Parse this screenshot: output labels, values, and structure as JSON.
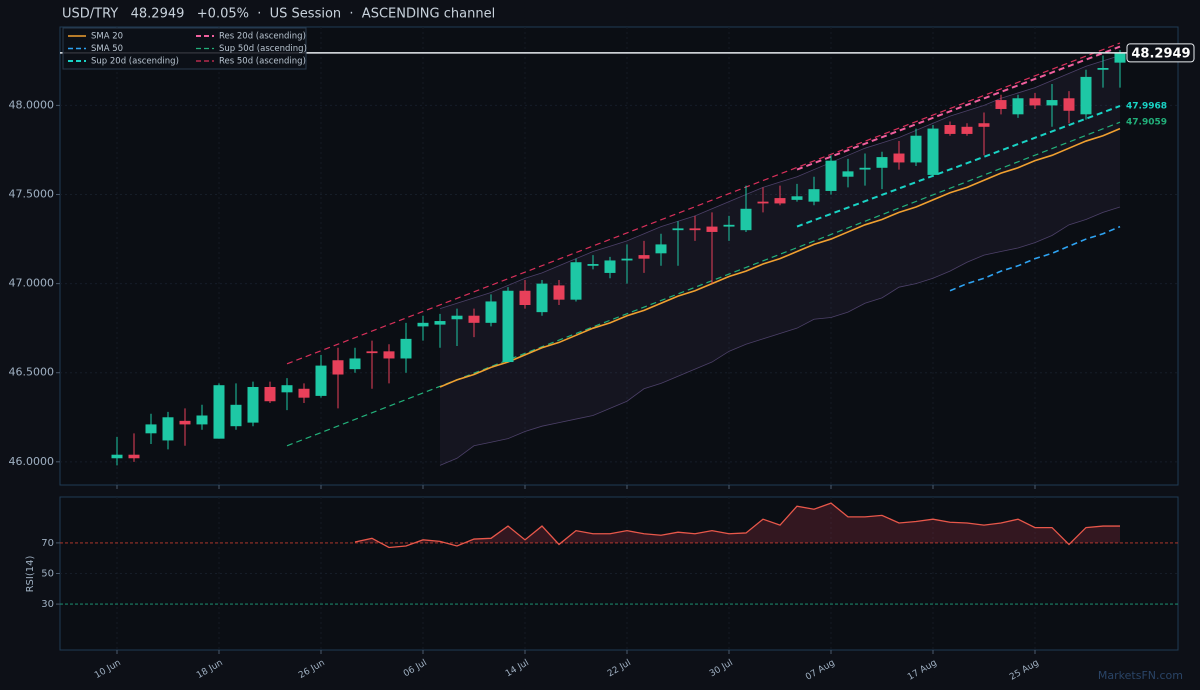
{
  "chart_data": [
    {
      "type": "candlestick",
      "title": "USD/TRY   48.2949   +0.05%  ·  US Session  ·  ASCENDING channel",
      "categories": [
        "10 Jun",
        null,
        null,
        null,
        null,
        null,
        "18 Jun",
        null,
        null,
        null,
        null,
        null,
        "26 Jun",
        null,
        null,
        null,
        null,
        null,
        "06 Jul",
        null,
        null,
        null,
        null,
        null,
        "14 Jul",
        null,
        null,
        null,
        null,
        null,
        "22 Jul",
        null,
        null,
        null,
        null,
        null,
        "30 Jul",
        null,
        null,
        null,
        null,
        null,
        "07 Aug",
        null,
        null,
        null,
        null,
        null,
        "17 Aug",
        null,
        null,
        null,
        null,
        null,
        "25 Aug",
        null,
        null,
        null,
        null,
        null
      ],
      "open": [
        46.02,
        46.04,
        46.16,
        46.12,
        46.23,
        46.21,
        46.13,
        46.2,
        46.22,
        46.42,
        46.39,
        46.41,
        46.37,
        46.57,
        46.52,
        46.62,
        46.62,
        46.58,
        46.76,
        46.77,
        46.8,
        46.82,
        46.78,
        46.56,
        46.96,
        46.84,
        46.99,
        46.91,
        47.1,
        47.06,
        47.13,
        47.16,
        47.17,
        47.3,
        47.31,
        47.32,
        47.32,
        47.3,
        47.46,
        47.48,
        47.47,
        47.46,
        47.52,
        47.6,
        47.64,
        47.65,
        47.73,
        47.68,
        47.61,
        47.89,
        47.88,
        47.9,
        48.03,
        47.95,
        48.04,
        48.0,
        48.04,
        47.95,
        48.2,
        48.24
      ],
      "high": [
        46.14,
        46.16,
        46.27,
        46.28,
        46.3,
        46.32,
        46.44,
        46.44,
        46.45,
        46.45,
        46.47,
        46.44,
        46.6,
        46.64,
        46.64,
        46.68,
        46.66,
        46.78,
        46.82,
        46.83,
        46.86,
        46.86,
        46.94,
        46.98,
        47.02,
        47.02,
        47.02,
        47.14,
        47.16,
        47.15,
        47.22,
        47.24,
        47.28,
        47.35,
        47.38,
        47.4,
        47.38,
        47.55,
        47.54,
        47.55,
        47.56,
        47.6,
        47.72,
        47.7,
        47.73,
        47.74,
        47.8,
        47.87,
        47.89,
        47.91,
        47.9,
        47.96,
        48.06,
        48.06,
        48.07,
        48.12,
        48.08,
        48.2,
        48.28,
        48.31
      ],
      "low": [
        45.98,
        46.0,
        46.1,
        46.07,
        46.09,
        46.18,
        46.13,
        46.18,
        46.2,
        46.33,
        46.29,
        46.33,
        46.36,
        46.3,
        46.5,
        46.41,
        46.44,
        46.5,
        46.68,
        46.64,
        46.65,
        46.7,
        46.76,
        46.56,
        46.86,
        46.82,
        46.88,
        46.9,
        47.08,
        47.03,
        47.0,
        47.06,
        47.1,
        47.1,
        47.24,
        47.0,
        47.24,
        47.29,
        47.4,
        47.44,
        47.46,
        47.44,
        47.5,
        47.54,
        47.55,
        47.53,
        47.64,
        47.66,
        47.6,
        47.83,
        47.83,
        47.72,
        47.95,
        47.93,
        47.98,
        47.88,
        47.9,
        47.92,
        48.1,
        48.1
      ],
      "close": [
        46.04,
        46.02,
        46.21,
        46.25,
        46.21,
        46.26,
        46.43,
        46.32,
        46.42,
        46.34,
        46.43,
        46.36,
        46.54,
        46.49,
        46.58,
        46.61,
        46.58,
        46.69,
        46.78,
        46.79,
        46.82,
        46.78,
        46.9,
        46.96,
        46.88,
        47.0,
        46.91,
        47.12,
        47.11,
        47.13,
        47.14,
        47.14,
        47.22,
        47.31,
        47.3,
        47.29,
        47.33,
        47.42,
        47.45,
        47.45,
        47.49,
        47.53,
        47.69,
        47.63,
        47.65,
        47.71,
        47.68,
        47.83,
        47.87,
        47.84,
        47.84,
        47.88,
        47.98,
        48.04,
        48.0,
        48.03,
        47.97,
        48.16,
        48.21,
        48.2949
      ],
      "up_color": "#1ec8a5",
      "down_color": "#e8405a",
      "band": {
        "color": "#8a6fb8",
        "upper": [
          null,
          null,
          null,
          null,
          null,
          null,
          null,
          null,
          null,
          null,
          null,
          null,
          null,
          null,
          null,
          null,
          null,
          null,
          null,
          46.86,
          46.89,
          46.92,
          46.95,
          46.99,
          47.03,
          47.06,
          47.1,
          47.14,
          47.18,
          47.21,
          47.24,
          47.28,
          47.32,
          47.35,
          47.38,
          47.42,
          47.46,
          47.5,
          47.54,
          47.57,
          47.6,
          47.64,
          47.68,
          47.72,
          47.76,
          47.79,
          47.82,
          47.86,
          47.9,
          47.94,
          47.97,
          48.0,
          48.04,
          48.07,
          48.1,
          48.14,
          48.18,
          48.22,
          48.25,
          48.28
        ],
        "lower": [
          null,
          null,
          null,
          null,
          null,
          null,
          null,
          null,
          null,
          null,
          null,
          null,
          null,
          null,
          null,
          null,
          null,
          null,
          null,
          45.98,
          46.02,
          46.09,
          46.11,
          46.13,
          46.17,
          46.2,
          46.22,
          46.24,
          46.26,
          46.3,
          46.34,
          46.41,
          46.44,
          46.48,
          46.52,
          46.56,
          46.62,
          46.66,
          46.69,
          46.72,
          46.75,
          46.8,
          46.81,
          46.84,
          46.89,
          46.92,
          46.98,
          47.0,
          47.03,
          47.07,
          47.12,
          47.16,
          47.18,
          47.2,
          47.23,
          47.27,
          47.33,
          47.36,
          47.4,
          47.43
        ]
      },
      "series": [
        {
          "name": "SMA 20",
          "color": "#f0a030",
          "dashed": false,
          "width": 1.6,
          "values": [
            null,
            null,
            null,
            null,
            null,
            null,
            null,
            null,
            null,
            null,
            null,
            null,
            null,
            null,
            null,
            null,
            null,
            null,
            null,
            46.42,
            46.46,
            46.49,
            46.53,
            46.56,
            46.6,
            46.64,
            46.67,
            46.71,
            46.75,
            46.78,
            46.82,
            46.85,
            46.89,
            46.93,
            46.96,
            47.0,
            47.04,
            47.07,
            47.11,
            47.14,
            47.18,
            47.22,
            47.25,
            47.29,
            47.33,
            47.36,
            47.4,
            47.43,
            47.47,
            47.51,
            47.54,
            47.58,
            47.62,
            47.65,
            47.69,
            47.72,
            47.76,
            47.8,
            47.83,
            47.87
          ]
        },
        {
          "name": "SMA 50",
          "color": "#2ea3f2",
          "dashed": true,
          "width": 1.6,
          "values": [
            null,
            null,
            null,
            null,
            null,
            null,
            null,
            null,
            null,
            null,
            null,
            null,
            null,
            null,
            null,
            null,
            null,
            null,
            null,
            null,
            null,
            null,
            null,
            null,
            null,
            null,
            null,
            null,
            null,
            null,
            null,
            null,
            null,
            null,
            null,
            null,
            null,
            null,
            null,
            null,
            null,
            null,
            null,
            null,
            null,
            null,
            null,
            null,
            null,
            46.96,
            47.0,
            47.03,
            47.07,
            47.1,
            47.14,
            47.17,
            47.21,
            47.25,
            47.28,
            47.32
          ]
        }
      ],
      "trendlines": [
        {
          "name": "Sup 20d (ascending)",
          "color": "#19d3c5",
          "dashed": true,
          "width": 2,
          "end_label": true,
          "x": [
            40,
            59
          ],
          "values": [
            47.32,
            47.9968
          ]
        },
        {
          "name": "Res 20d (ascending)",
          "color": "#f0609e",
          "dashed": true,
          "width": 2,
          "end_label": false,
          "x": [
            40,
            59
          ],
          "values": [
            47.64,
            48.33
          ]
        },
        {
          "name": "Sup 50d (ascending)",
          "color": "#22b07a",
          "dashed": true,
          "width": 1.2,
          "end_label": true,
          "x": [
            10,
            59
          ],
          "values": [
            46.09,
            47.9059
          ]
        },
        {
          "name": "Res 50d (ascending)",
          "color": "#d8305a",
          "dashed": true,
          "width": 1.2,
          "end_label": false,
          "x": [
            10,
            59
          ],
          "values": [
            46.55,
            48.35
          ]
        }
      ],
      "ylim": [
        45.87,
        48.44
      ],
      "yticks": [
        {
          "value": 46,
          "label": "46.0000"
        },
        {
          "value": 46.5,
          "label": "46.5000"
        },
        {
          "value": 47,
          "label": "47.0000"
        },
        {
          "value": 47.5,
          "label": "47.5000"
        },
        {
          "value": 48,
          "label": "48.0000"
        }
      ],
      "grid": true,
      "watermark": "MarketsFN.com"
    },
    {
      "type": "line",
      "ylabel": "RSI(14)",
      "color": "#e8574a",
      "values": [
        null,
        null,
        null,
        null,
        null,
        null,
        null,
        null,
        null,
        null,
        null,
        null,
        null,
        null,
        70.6,
        73,
        67,
        68,
        72,
        71,
        68,
        72.5,
        73,
        81,
        72,
        81,
        69,
        78,
        76,
        76,
        78,
        76,
        75,
        77,
        76,
        78,
        76,
        76.5,
        85.5,
        81.6,
        94,
        92,
        96,
        87,
        87,
        88,
        83,
        84,
        85.5,
        83.5,
        83,
        81.6,
        83,
        85.5,
        80,
        80,
        69,
        80,
        81,
        81
      ],
      "ylim": [
        0,
        100
      ],
      "yticks": [
        30,
        50,
        70
      ],
      "ref_lines": [
        {
          "value": 70,
          "color": "#c0392b"
        },
        {
          "value": 30,
          "color": "#1e9e7a"
        }
      ]
    }
  ]
}
